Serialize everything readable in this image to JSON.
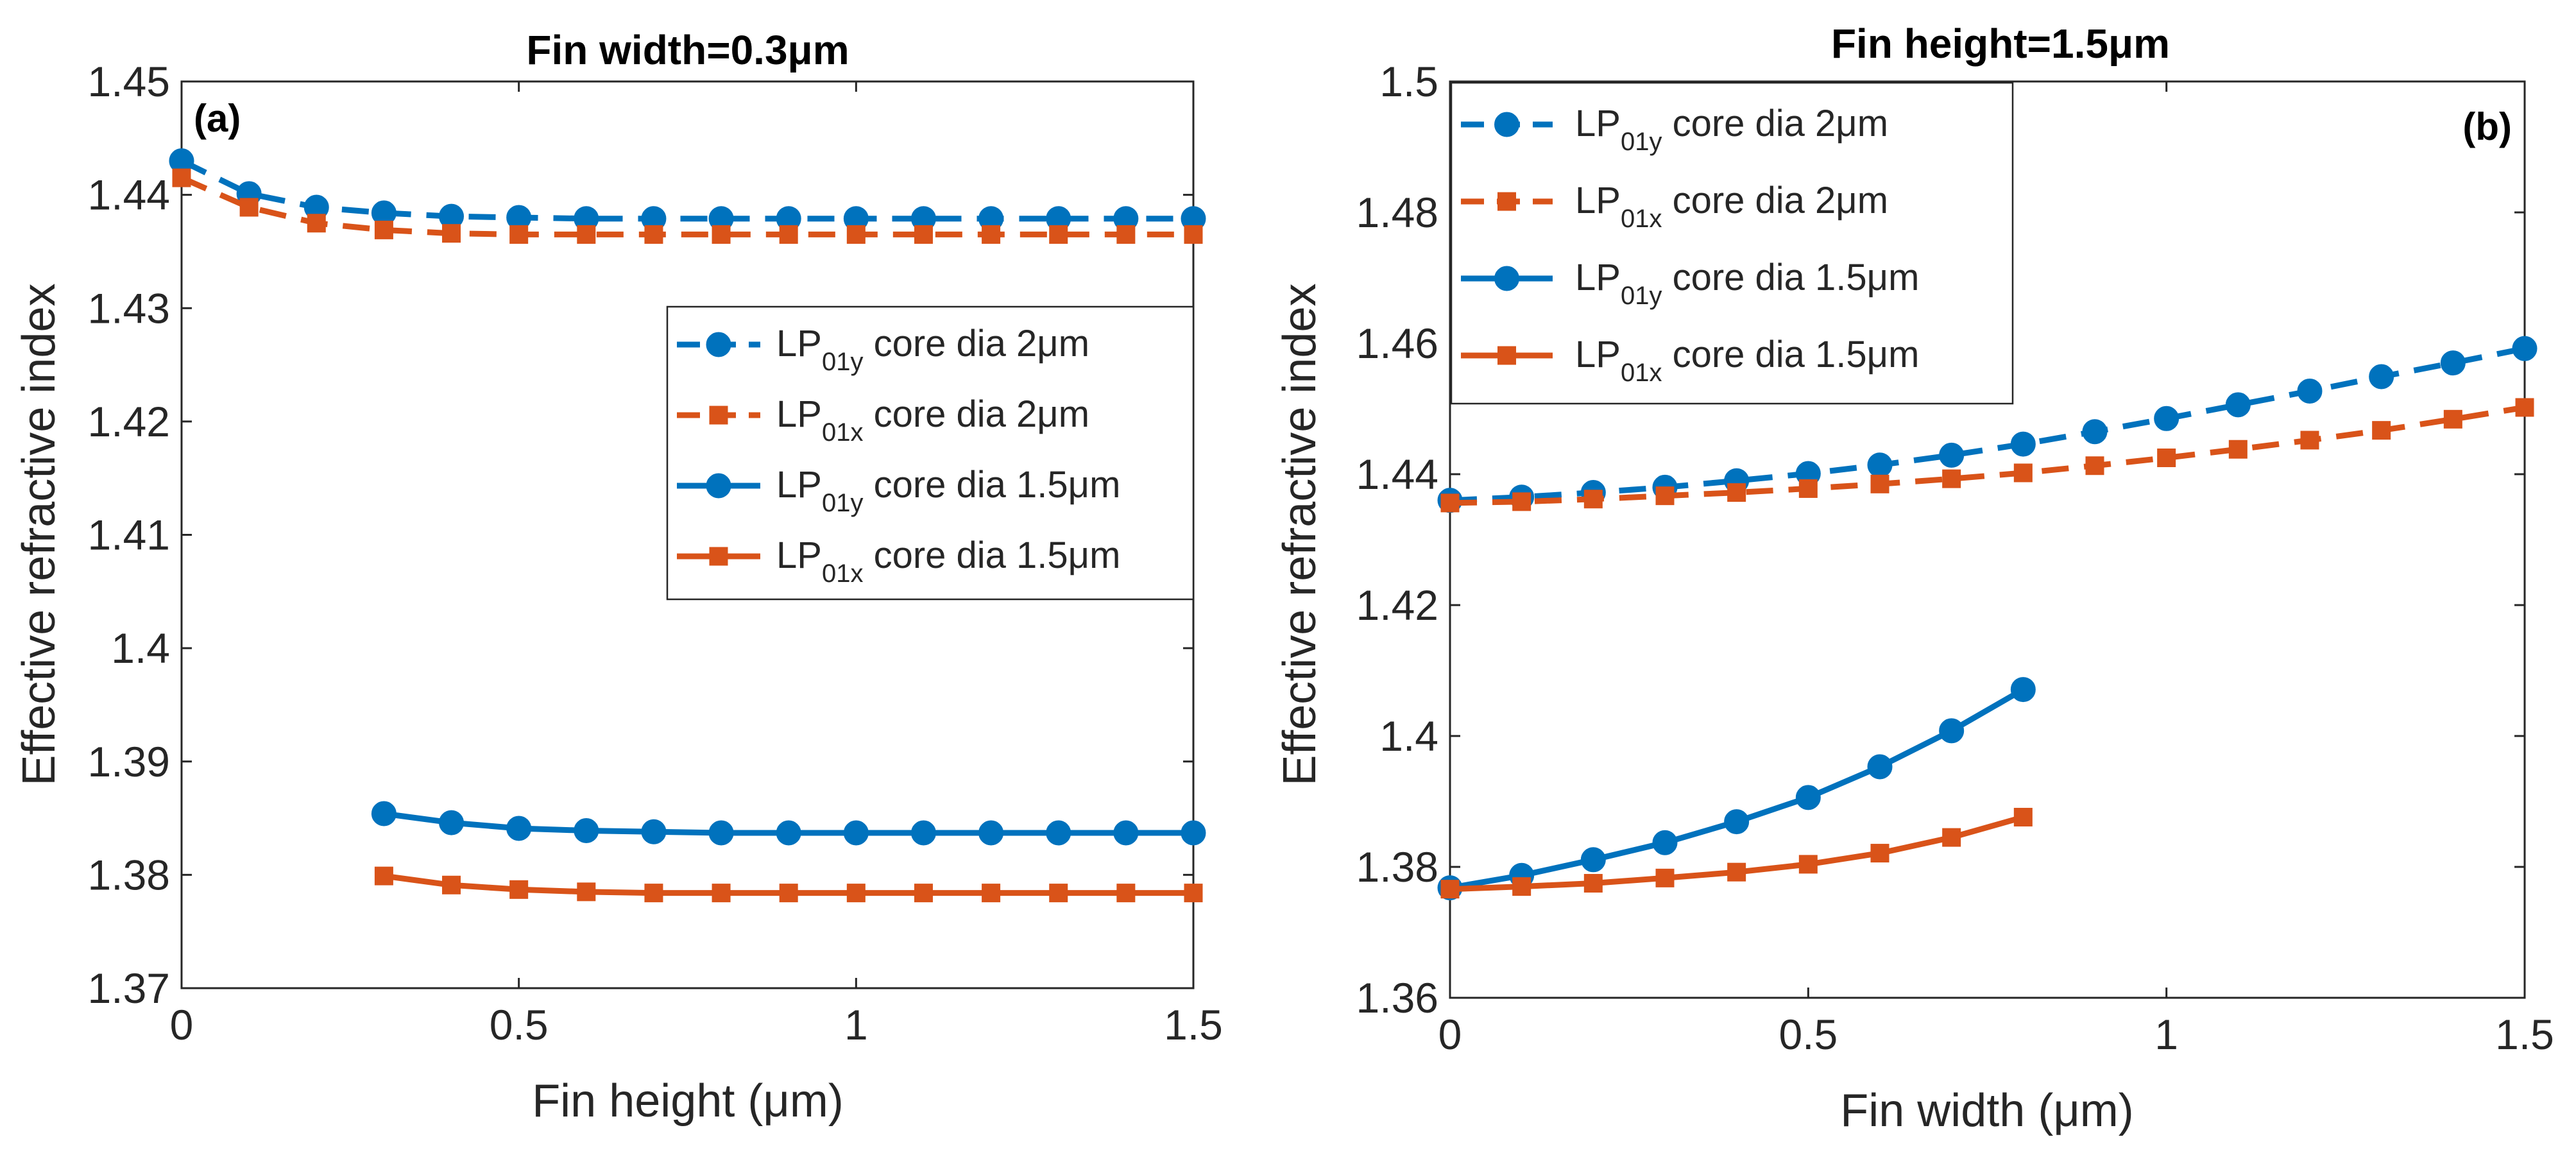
{
  "chart_data": [
    {
      "panel": "a",
      "type": "line",
      "title": "Fin width=0.3μm",
      "panel_label": "(a)",
      "xlabel": "Fin height (μm)",
      "ylabel": "Effective refractive index",
      "xlim": [
        0,
        1.5
      ],
      "ylim": [
        1.37,
        1.45
      ],
      "xticks": [
        0,
        0.5,
        1,
        1.5
      ],
      "xtick_labels": [
        "0",
        "0.5",
        "1",
        "1.5"
      ],
      "yticks": [
        1.37,
        1.38,
        1.39,
        1.4,
        1.41,
        1.42,
        1.43,
        1.44,
        1.45
      ],
      "ytick_labels": [
        "1.37",
        "1.38",
        "1.39",
        "1.4",
        "1.41",
        "1.42",
        "1.43",
        "1.44",
        "1.45"
      ],
      "legend_position": "center-right",
      "series": [
        {
          "name": "LP01y core dia 2μm",
          "legend": {
            "base": "LP",
            "sub": "01y",
            "rest": " core dia 2μm"
          },
          "color": "#0072BD",
          "dash": "dashed",
          "marker": "circle",
          "x": [
            0,
            0.1,
            0.2,
            0.3,
            0.4,
            0.5,
            0.6,
            0.7,
            0.8,
            0.9,
            1.0,
            1.1,
            1.2,
            1.3,
            1.4,
            1.5
          ],
          "y": [
            1.443,
            1.4401,
            1.4389,
            1.4384,
            1.4381,
            1.438,
            1.4379,
            1.4379,
            1.4379,
            1.4379,
            1.4379,
            1.4379,
            1.4379,
            1.4379,
            1.4379,
            1.4379
          ]
        },
        {
          "name": "LP01x core dia 2μm",
          "legend": {
            "base": "LP",
            "sub": "01x",
            "rest": " core dia 2μm"
          },
          "color": "#D95319",
          "dash": "dashed",
          "marker": "square",
          "x": [
            0,
            0.1,
            0.2,
            0.3,
            0.4,
            0.5,
            0.6,
            0.7,
            0.8,
            0.9,
            1.0,
            1.1,
            1.2,
            1.3,
            1.4,
            1.5
          ],
          "y": [
            1.4415,
            1.4389,
            1.4375,
            1.4369,
            1.4366,
            1.4365,
            1.4365,
            1.4365,
            1.4365,
            1.4365,
            1.4365,
            1.4365,
            1.4365,
            1.4365,
            1.4365,
            1.4365
          ]
        },
        {
          "name": "LP01y core dia 1.5μm",
          "legend": {
            "base": "LP",
            "sub": "01y",
            "rest": " core dia 1.5μm"
          },
          "color": "#0072BD",
          "dash": "solid",
          "marker": "circle",
          "x": [
            0.3,
            0.4,
            0.5,
            0.6,
            0.7,
            0.8,
            0.9,
            1.0,
            1.1,
            1.2,
            1.3,
            1.4,
            1.5
          ],
          "y": [
            1.3854,
            1.3846,
            1.3841,
            1.3839,
            1.3838,
            1.3837,
            1.3837,
            1.3837,
            1.3837,
            1.3837,
            1.3837,
            1.3837,
            1.3837
          ]
        },
        {
          "name": "LP01x core dia 1.5μm",
          "legend": {
            "base": "LP",
            "sub": "01x",
            "rest": " core dia 1.5μm"
          },
          "color": "#D95319",
          "dash": "solid",
          "marker": "square",
          "x": [
            0.3,
            0.4,
            0.5,
            0.6,
            0.7,
            0.8,
            0.9,
            1.0,
            1.1,
            1.2,
            1.3,
            1.4,
            1.5
          ],
          "y": [
            1.3799,
            1.3791,
            1.3787,
            1.3785,
            1.3784,
            1.3784,
            1.3784,
            1.3784,
            1.3784,
            1.3784,
            1.3784,
            1.3784,
            1.3784
          ]
        }
      ]
    },
    {
      "panel": "b",
      "type": "line",
      "title": "Fin height=1.5μm",
      "panel_label": "(b)",
      "xlabel": "Fin width (μm)",
      "ylabel": "Effective refractive index",
      "xlim": [
        0,
        1.5
      ],
      "ylim": [
        1.36,
        1.5
      ],
      "xticks": [
        0,
        0.5,
        1,
        1.5
      ],
      "xtick_labels": [
        "0",
        "0.5",
        "1",
        "1.5"
      ],
      "yticks": [
        1.36,
        1.38,
        1.4,
        1.42,
        1.44,
        1.46,
        1.48,
        1.5
      ],
      "ytick_labels": [
        "1.36",
        "1.38",
        "1.4",
        "1.42",
        "1.44",
        "1.46",
        "1.48",
        "1.5"
      ],
      "legend_position": "top-left",
      "series": [
        {
          "name": "LP01y core dia 2μm",
          "legend": {
            "base": "LP",
            "sub": "01y",
            "rest": " core dia 2μm"
          },
          "color": "#0072BD",
          "dash": "dashed",
          "marker": "circle",
          "x": [
            0,
            0.1,
            0.2,
            0.3,
            0.4,
            0.5,
            0.6,
            0.7,
            0.8,
            0.9,
            1.0,
            1.1,
            1.2,
            1.3,
            1.4,
            1.5
          ],
          "y": [
            1.436,
            1.4365,
            1.4372,
            1.438,
            1.439,
            1.4401,
            1.4414,
            1.4429,
            1.4446,
            1.4465,
            1.4485,
            1.4506,
            1.4527,
            1.4549,
            1.457,
            1.4592
          ]
        },
        {
          "name": "LP01x core dia 2μm",
          "legend": {
            "base": "LP",
            "sub": "01x",
            "rest": " core dia 2μm"
          },
          "color": "#D95319",
          "dash": "dashed",
          "marker": "square",
          "x": [
            0,
            0.1,
            0.2,
            0.3,
            0.4,
            0.5,
            0.6,
            0.7,
            0.8,
            0.9,
            1.0,
            1.1,
            1.2,
            1.3,
            1.4,
            1.5
          ],
          "y": [
            1.4356,
            1.4358,
            1.4362,
            1.4367,
            1.4372,
            1.4378,
            1.4385,
            1.4393,
            1.4402,
            1.4413,
            1.4425,
            1.4438,
            1.4452,
            1.4467,
            1.4484,
            1.4502
          ]
        },
        {
          "name": "LP01y core dia 1.5μm",
          "legend": {
            "base": "LP",
            "sub": "01y",
            "rest": " core dia 1.5μm"
          },
          "color": "#0072BD",
          "dash": "solid",
          "marker": "circle",
          "x": [
            0,
            0.1,
            0.2,
            0.3,
            0.4,
            0.5,
            0.6,
            0.7,
            0.8
          ],
          "y": [
            1.3768,
            1.3787,
            1.3811,
            1.3837,
            1.3869,
            1.3906,
            1.3953,
            1.4008,
            1.4071
          ]
        },
        {
          "name": "LP01x core dia 1.5μm",
          "legend": {
            "base": "LP",
            "sub": "01x",
            "rest": " core dia 1.5μm"
          },
          "color": "#D95319",
          "dash": "solid",
          "marker": "square",
          "x": [
            0,
            0.1,
            0.2,
            0.3,
            0.4,
            0.5,
            0.6,
            0.7,
            0.8
          ],
          "y": [
            1.3766,
            1.377,
            1.3775,
            1.3783,
            1.3792,
            1.3804,
            1.3821,
            1.3845,
            1.3876
          ]
        }
      ]
    }
  ]
}
